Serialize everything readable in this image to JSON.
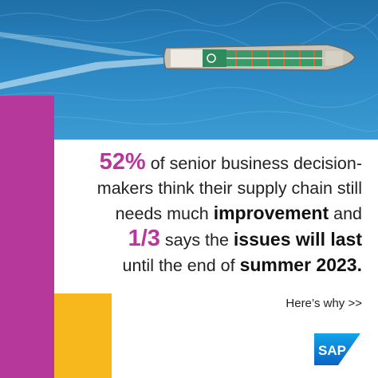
{
  "headline": {
    "stat1": "52%",
    "line1": " of senior business decision-",
    "line2": "makers think their supply chain still",
    "line3a": "needs much ",
    "improvement": "improvement",
    "line3b": " and",
    "stat2": "1/3",
    "line4a": " says the ",
    "issues": "issues will last",
    "line5a": "until the end of ",
    "summer": "summer 2023."
  },
  "cta": {
    "label": "Here’s why >>"
  },
  "logo": {
    "text": "SAP",
    "color": "#0a6ed1"
  },
  "colors": {
    "accent_purple": "#b5389a",
    "accent_yellow": "#f6b81c",
    "sea_blue": "#2a86c2"
  }
}
